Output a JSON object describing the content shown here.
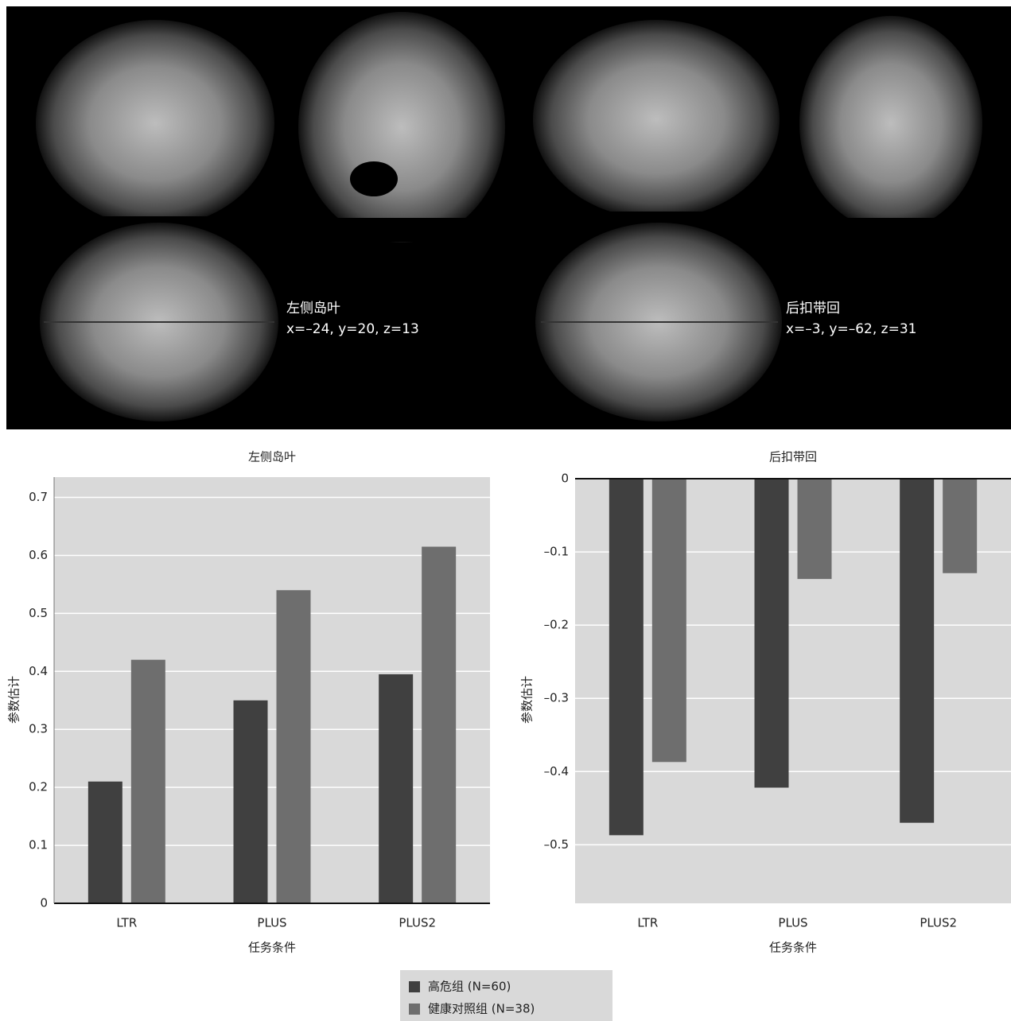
{
  "brain_panel": {
    "labels": [
      {
        "region": "左侧岛叶",
        "coords": "x=–24, y=20, z=13"
      },
      {
        "region": "后扣带回",
        "coords": "x=–3, y=–62, z=31"
      }
    ]
  },
  "chart_data": [
    {
      "type": "bar",
      "title": "左侧岛叶",
      "x_label": "任务条件",
      "y_label": "参数估计",
      "categories": [
        "LTR",
        "PLUS",
        "PLUS2"
      ],
      "series": [
        {
          "name": "高危组 (N=60)",
          "color": "#404040",
          "values": [
            0.21,
            0.35,
            0.395
          ]
        },
        {
          "name": "健康对照组 (N=38)",
          "color": "#6e6e6e",
          "values": [
            0.42,
            0.54,
            0.615
          ]
        }
      ],
      "ylim": [
        0,
        0.735
      ],
      "yticks": [
        0,
        0.1,
        0.2,
        0.3,
        0.4,
        0.5,
        0.6,
        0.7
      ],
      "grid": true
    },
    {
      "type": "bar",
      "title": "后扣带回",
      "x_label": "任务条件",
      "y_label": "参数估计",
      "categories": [
        "LTR",
        "PLUS",
        "PLUS2"
      ],
      "series": [
        {
          "name": "高危组 (N=60)",
          "color": "#404040",
          "values": [
            -0.487,
            -0.422,
            -0.47
          ]
        },
        {
          "name": "健康对照组 (N=38)",
          "color": "#6e6e6e",
          "values": [
            -0.387,
            -0.137,
            -0.129
          ]
        }
      ],
      "ylim": [
        -0.58,
        0
      ],
      "yticks": [
        0,
        {
          "value": -0.1,
          "label": "–0.1"
        },
        {
          "value": -0.2,
          "label": "–0.2"
        },
        {
          "value": -0.3,
          "label": "–0.3"
        },
        {
          "value": -0.4,
          "label": "–0.4"
        },
        {
          "value": -0.5,
          "label": "–0.5"
        }
      ],
      "grid": true
    }
  ]
}
